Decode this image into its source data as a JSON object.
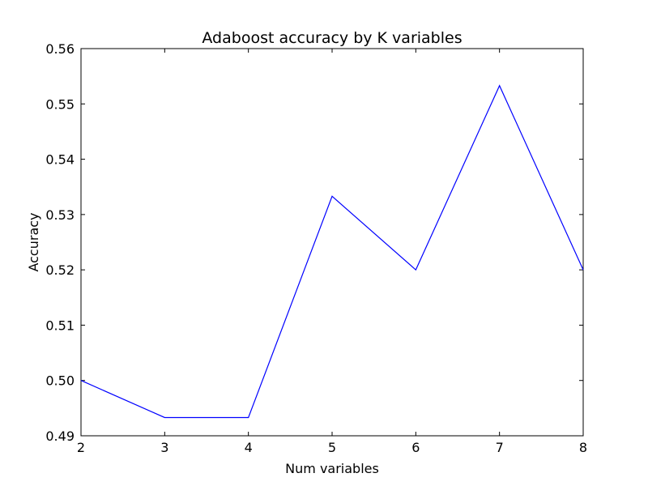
{
  "chart_data": {
    "type": "line",
    "title": "Adaboost accuracy by K variables",
    "xlabel": "Num variables",
    "ylabel": "Accuracy",
    "x": [
      2,
      3,
      4,
      5,
      6,
      7,
      8
    ],
    "series": [
      {
        "values": [
          0.5,
          0.4933,
          0.4933,
          0.5333,
          0.52,
          0.5533,
          0.52
        ],
        "color": "#0000ff"
      }
    ],
    "xlim": [
      2,
      8
    ],
    "ylim": [
      0.49,
      0.56
    ],
    "xticks": [
      2,
      3,
      4,
      5,
      6,
      7,
      8
    ],
    "xtick_labels": [
      "2",
      "3",
      "4",
      "5",
      "6",
      "7",
      "8"
    ],
    "yticks": [
      0.49,
      0.5,
      0.51,
      0.52,
      0.53,
      0.54,
      0.55,
      0.56
    ],
    "ytick_labels": [
      "0.49",
      "0.50",
      "0.51",
      "0.52",
      "0.53",
      "0.54",
      "0.55",
      "0.56"
    ],
    "grid": false,
    "legend": false
  }
}
